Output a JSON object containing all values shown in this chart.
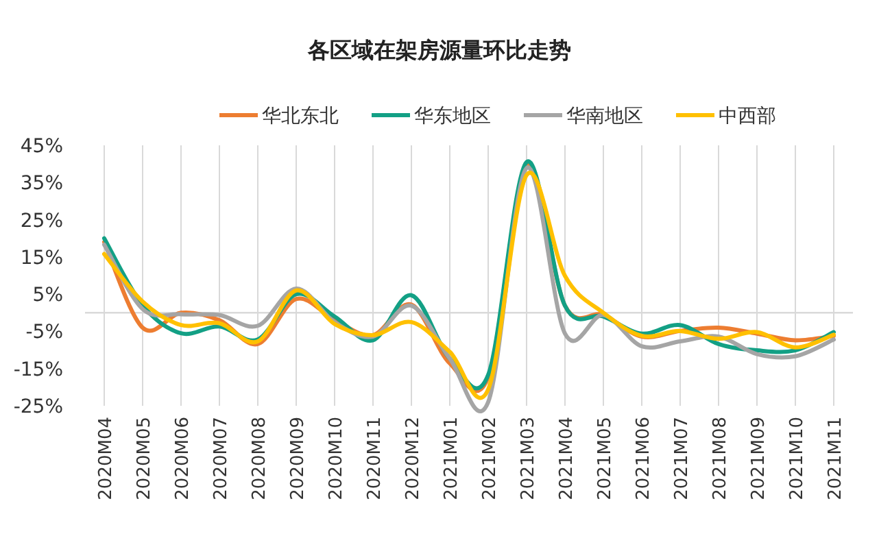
{
  "chart_data": {
    "type": "line",
    "title": "各区域在架房源量环比走势",
    "categories": [
      "2020M04",
      "2020M05",
      "2020M06",
      "2020M07",
      "2020M08",
      "2020M09",
      "2020M10",
      "2020M11",
      "2020M12",
      "2021M01",
      "2021M02",
      "2021M03",
      "2021M04",
      "2021M05",
      "2021M06",
      "2021M07",
      "2021M08",
      "2021M09",
      "2021M10",
      "2021M11"
    ],
    "series": [
      {
        "name": "华北东北",
        "color": "#ed7d31",
        "values": [
          19,
          -4,
          0,
          -2,
          -8.4,
          3.7,
          -1.9,
          -6,
          2.2,
          -13.6,
          -17.3,
          39.5,
          1.9,
          -0.6,
          -6.4,
          -4.9,
          -4,
          -5.6,
          -7.4,
          -6.2
        ]
      },
      {
        "name": "华东地区",
        "color": "#13a085",
        "values": [
          20,
          2,
          -5.5,
          -3.7,
          -7.2,
          5,
          -1,
          -7.4,
          4.7,
          -12.3,
          -16.7,
          40.5,
          1.9,
          -1,
          -5.6,
          -3.3,
          -8.4,
          -10.1,
          -10.1,
          -5.2
        ]
      },
      {
        "name": "华南地区",
        "color": "#a5a5a5",
        "values": [
          18.3,
          1,
          -0.4,
          -0.6,
          -3.5,
          6.5,
          -2.5,
          -6.4,
          1.9,
          -12.3,
          -24,
          38.9,
          -5.6,
          -0.6,
          -9,
          -7.7,
          -6.4,
          -11.1,
          -11.7,
          -7.2
        ]
      },
      {
        "name": "中西部",
        "color": "#ffc000",
        "values": [
          15.8,
          3,
          -3.3,
          -2.8,
          -7.7,
          6,
          -3,
          -6,
          -2.5,
          -10.5,
          -20.6,
          37,
          9.9,
          0,
          -6.2,
          -4.9,
          -7,
          -5.2,
          -9.3,
          -5.9
        ]
      }
    ],
    "ylim": [
      -25,
      45
    ],
    "yticks": [
      {
        "value": 45,
        "label": "45%"
      },
      {
        "value": 35,
        "label": "35%"
      },
      {
        "value": 25,
        "label": "25%"
      },
      {
        "value": 15,
        "label": "15%"
      },
      {
        "value": 5,
        "label": "5%"
      },
      {
        "value": -5,
        "label": "-5%"
      },
      {
        "value": -15,
        "label": "-15%"
      },
      {
        "value": -25,
        "label": "-25%"
      }
    ],
    "grid": "x",
    "legend": "top"
  }
}
